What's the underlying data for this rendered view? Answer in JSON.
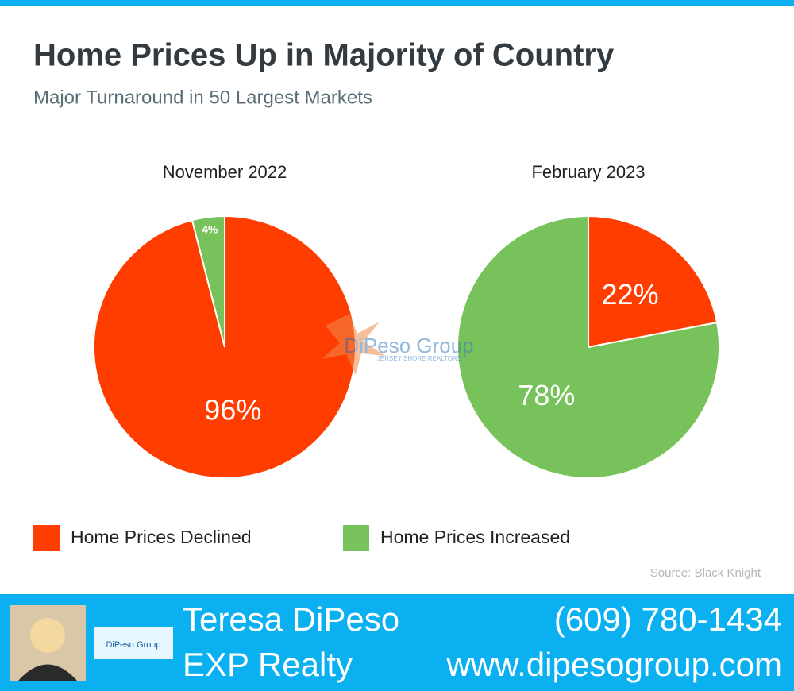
{
  "title": "Home Prices Up in Majority of Country",
  "subtitle": "Major Turnaround in 50 Largest Markets",
  "chart_data": [
    {
      "type": "pie",
      "title": "November 2022",
      "categories": [
        "Home Prices Declined",
        "Home Prices Increased"
      ],
      "values": [
        96,
        4
      ],
      "value_labels": [
        "96%",
        "4%"
      ],
      "colors": [
        "#ff3d00",
        "#77c25a"
      ]
    },
    {
      "type": "pie",
      "title": "February 2023",
      "categories": [
        "Home Prices Declined",
        "Home Prices Increased"
      ],
      "values": [
        22,
        78
      ],
      "value_labels": [
        "22%",
        "78%"
      ],
      "colors": [
        "#ff3d00",
        "#77c25a"
      ]
    }
  ],
  "source": "Source: Black Knight",
  "watermark": {
    "name": "DiPeso Group",
    "tagline": "JERSEY SHORE REALTORS"
  },
  "footer": {
    "agent": "Teresa DiPeso",
    "company": "EXP Realty",
    "phone": "(609) 780-1434",
    "website": "www.dipesogroup.com"
  }
}
